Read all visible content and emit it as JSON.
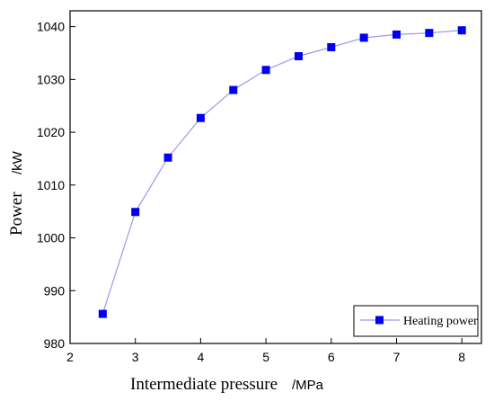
{
  "chart_data": {
    "type": "line",
    "title": "",
    "xlabel": "Intermediate pressure",
    "xunit": "/MPa",
    "ylabel": "Power",
    "yunit": "/kW",
    "xlim": [
      2,
      8.3
    ],
    "ylim": [
      980,
      1043
    ],
    "xticks": [
      2,
      3,
      4,
      5,
      6,
      7,
      8
    ],
    "yticks": [
      980,
      990,
      1000,
      1010,
      1020,
      1030,
      1040
    ],
    "grid": false,
    "legend_position": "bottom-right",
    "series": [
      {
        "name": "Heating power",
        "marker": "square",
        "color": "#0000ee",
        "line_color": "#9999ee",
        "x": [
          2.5,
          3.0,
          3.5,
          4.0,
          4.5,
          5.0,
          5.5,
          6.0,
          6.5,
          7.0,
          7.5,
          8.0
        ],
        "y": [
          985.6,
          1004.9,
          1015.2,
          1022.7,
          1028.0,
          1031.8,
          1034.4,
          1036.1,
          1037.9,
          1038.5,
          1038.8,
          1039.3
        ]
      }
    ]
  }
}
